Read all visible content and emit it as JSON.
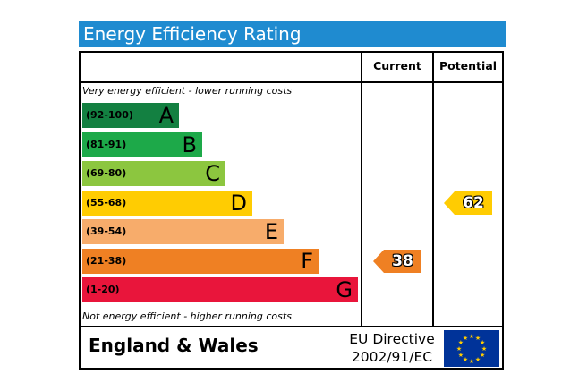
{
  "title": "Energy Efficiency Rating",
  "columns": {
    "current": "Current",
    "potential": "Potential"
  },
  "top_note": "Very energy efficient - lower running costs",
  "bottom_note": "Not energy efficient - higher running costs",
  "bands": [
    {
      "range": "(92-100)",
      "letter": "A",
      "color": "#138041",
      "range_color": "#000000"
    },
    {
      "range": "(81-91)",
      "letter": "B",
      "color": "#1da949",
      "range_color": "#000000"
    },
    {
      "range": "(69-80)",
      "letter": "C",
      "color": "#8cc63f",
      "range_color": "#000000"
    },
    {
      "range": "(55-68)",
      "letter": "D",
      "color": "#ffcc02",
      "range_color": "#000000"
    },
    {
      "range": "(39-54)",
      "letter": "E",
      "color": "#f7ac6b",
      "range_color": "#000000"
    },
    {
      "range": "(21-38)",
      "letter": "F",
      "color": "#ef8023",
      "range_color": "#000000"
    },
    {
      "range": "(1-20)",
      "letter": "G",
      "color": "#e9153b",
      "range_color": "#000000"
    }
  ],
  "current": {
    "value": "38",
    "band": "F",
    "color": "#ef8023"
  },
  "potential": {
    "value": "62",
    "band": "D",
    "color": "#ffcc02"
  },
  "footer": {
    "region": "England & Wales",
    "directive_line1": "EU Directive",
    "directive_line2": "2002/91/EC",
    "flag_color": "#003399",
    "star_color": "#ffcc00"
  }
}
